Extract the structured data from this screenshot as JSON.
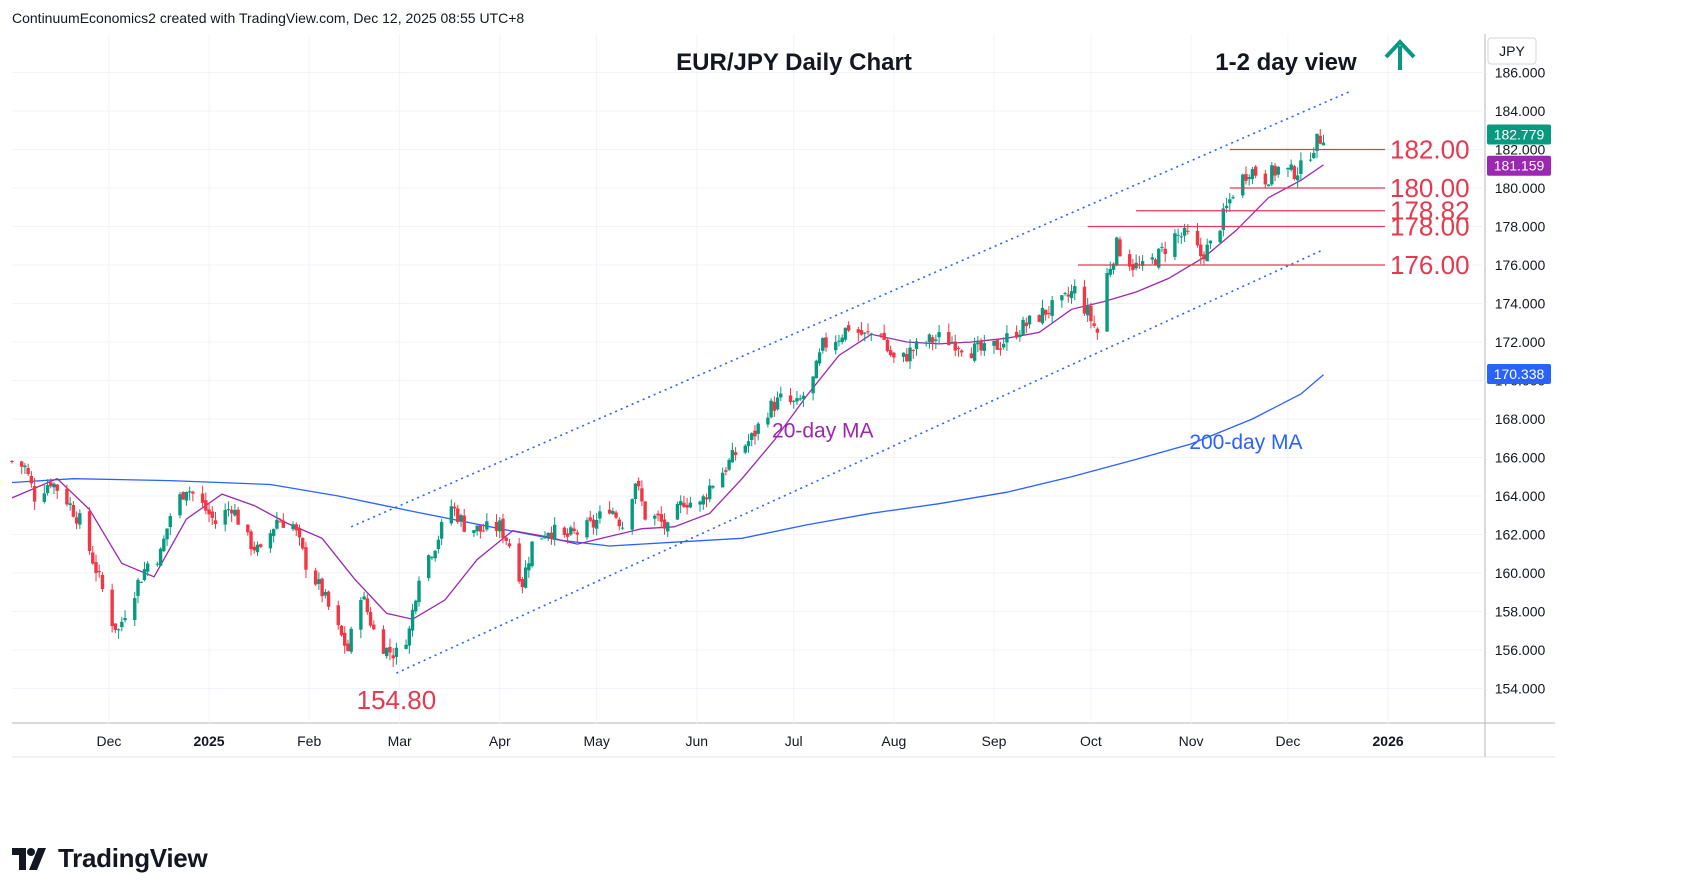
{
  "header": {
    "credit": "ContinuumEconomics2 created with TradingView.com, Dec 12, 2025 08:55 UTC+8"
  },
  "footer": {
    "logo_text": "TradingView",
    "logo_icon": "tradingview-logo-icon"
  },
  "chart_data": {
    "type": "candlestick",
    "title": "EUR/JPY Daily Chart",
    "annotation": "1-2 day view",
    "view_icon": "arrow-up-icon",
    "currency_label": "JPY",
    "ylim": [
      152,
      188
    ],
    "yticks": [
      "154.000",
      "156.000",
      "158.000",
      "160.000",
      "162.000",
      "164.000",
      "166.000",
      "168.000",
      "170.000",
      "172.000",
      "174.000",
      "176.000",
      "178.000",
      "180.000",
      "182.000",
      "184.000",
      "186.000"
    ],
    "xticks": [
      {
        "label": "Dec",
        "date": "2024-12-01"
      },
      {
        "label": "2025",
        "date": "2025-01-01",
        "bold": true
      },
      {
        "label": "Feb",
        "date": "2025-02-01"
      },
      {
        "label": "Mar",
        "date": "2025-03-01"
      },
      {
        "label": "Apr",
        "date": "2025-04-01"
      },
      {
        "label": "May",
        "date": "2025-05-01"
      },
      {
        "label": "Jun",
        "date": "2025-06-01"
      },
      {
        "label": "Jul",
        "date": "2025-07-01"
      },
      {
        "label": "Aug",
        "date": "2025-08-01"
      },
      {
        "label": "Sep",
        "date": "2025-09-01"
      },
      {
        "label": "Oct",
        "date": "2025-10-01"
      },
      {
        "label": "Nov",
        "date": "2025-11-01"
      },
      {
        "label": "Dec",
        "date": "2025-12-01"
      },
      {
        "label": "2026",
        "date": "2026-01-01",
        "bold": true
      }
    ],
    "price_tags": [
      {
        "value": 182.779,
        "label": "182.779",
        "color": "#089981"
      },
      {
        "value": 181.159,
        "label": "181.159",
        "color": "#9c27b0"
      },
      {
        "value": 170.338,
        "label": "170.338",
        "color": "#2962ff"
      }
    ],
    "levels": [
      {
        "value": 182.0,
        "label": "182.00",
        "from": "2025-11-13"
      },
      {
        "value": 180.0,
        "label": "180.00",
        "from": "2025-11-13"
      },
      {
        "value": 178.82,
        "label": "178.82",
        "from": "2025-10-15"
      },
      {
        "value": 178.0,
        "label": "178.00",
        "from": "2025-09-30"
      },
      {
        "value": 176.0,
        "label": "176.00",
        "from": "2025-09-27"
      }
    ],
    "low_label": {
      "value": 154.8,
      "label": "154.80",
      "date": "2025-02-28"
    },
    "channel": {
      "upper": [
        {
          "date": "2025-02-14",
          "value": 162.4
        },
        {
          "date": "2025-12-20",
          "value": 185.0
        }
      ],
      "lower": [
        {
          "date": "2025-02-28",
          "value": 154.8
        },
        {
          "date": "2025-12-12",
          "value": 176.8
        }
      ]
    },
    "ma_labels": [
      {
        "name": "20-day MA",
        "color": "#9c27b0",
        "date": "2025-07-10",
        "value": 167.4
      },
      {
        "name": "200-day MA",
        "color": "#2962ff",
        "date": "2025-11-18",
        "value": 166.8
      }
    ],
    "ma20": [
      [
        "2024-11-01",
        163.9
      ],
      [
        "2024-11-15",
        164.9
      ],
      [
        "2024-11-25",
        163.3
      ],
      [
        "2024-12-05",
        160.5
      ],
      [
        "2024-12-15",
        159.8
      ],
      [
        "2024-12-25",
        162.8
      ],
      [
        "2025-01-05",
        164.1
      ],
      [
        "2025-01-15",
        163.5
      ],
      [
        "2025-01-25",
        162.6
      ],
      [
        "2025-02-05",
        161.8
      ],
      [
        "2025-02-15",
        159.7
      ],
      [
        "2025-02-25",
        157.9
      ],
      [
        "2025-03-05",
        157.6
      ],
      [
        "2025-03-15",
        158.6
      ],
      [
        "2025-03-25",
        160.7
      ],
      [
        "2025-04-05",
        162.2
      ],
      [
        "2025-04-15",
        161.9
      ],
      [
        "2025-04-25",
        161.5
      ],
      [
        "2025-05-05",
        161.9
      ],
      [
        "2025-05-15",
        162.3
      ],
      [
        "2025-05-25",
        162.4
      ],
      [
        "2025-06-05",
        163.1
      ],
      [
        "2025-06-15",
        164.9
      ],
      [
        "2025-06-25",
        166.9
      ],
      [
        "2025-07-05",
        169.2
      ],
      [
        "2025-07-15",
        171.3
      ],
      [
        "2025-07-25",
        172.4
      ],
      [
        "2025-08-05",
        172.0
      ],
      [
        "2025-08-15",
        171.9
      ],
      [
        "2025-08-25",
        172.0
      ],
      [
        "2025-09-05",
        172.2
      ],
      [
        "2025-09-15",
        172.5
      ],
      [
        "2025-09-25",
        173.7
      ],
      [
        "2025-10-05",
        174.1
      ],
      [
        "2025-10-15",
        174.6
      ],
      [
        "2025-10-25",
        175.3
      ],
      [
        "2025-11-05",
        176.4
      ],
      [
        "2025-11-15",
        177.8
      ],
      [
        "2025-11-25",
        179.5
      ],
      [
        "2025-12-05",
        180.4
      ],
      [
        "2025-12-12",
        181.2
      ]
    ],
    "ma200": [
      [
        "2024-11-01",
        164.7
      ],
      [
        "2024-11-20",
        164.9
      ],
      [
        "2024-12-20",
        164.8
      ],
      [
        "2025-01-20",
        164.6
      ],
      [
        "2025-02-10",
        164.0
      ],
      [
        "2025-03-05",
        163.2
      ],
      [
        "2025-04-01",
        162.3
      ],
      [
        "2025-04-20",
        161.7
      ],
      [
        "2025-05-05",
        161.4
      ],
      [
        "2025-05-25",
        161.6
      ],
      [
        "2025-06-15",
        161.8
      ],
      [
        "2025-07-05",
        162.5
      ],
      [
        "2025-07-25",
        163.1
      ],
      [
        "2025-08-15",
        163.6
      ],
      [
        "2025-09-05",
        164.2
      ],
      [
        "2025-09-25",
        165.0
      ],
      [
        "2025-10-15",
        165.9
      ],
      [
        "2025-11-01",
        166.7
      ],
      [
        "2025-11-20",
        168.0
      ],
      [
        "2025-12-05",
        169.3
      ],
      [
        "2025-12-12",
        170.3
      ]
    ],
    "close_anchors": [
      [
        "2024-11-01",
        165.8
      ],
      [
        "2024-11-05",
        165.5
      ],
      [
        "2024-11-08",
        164.0
      ],
      [
        "2024-11-13",
        164.8
      ],
      [
        "2024-11-18",
        163.8
      ],
      [
        "2024-11-22",
        162.7
      ],
      [
        "2024-11-27",
        160.2
      ],
      [
        "2024-12-02",
        157.5
      ],
      [
        "2024-12-04",
        157.0
      ],
      [
        "2024-12-06",
        158.0
      ],
      [
        "2024-12-10",
        159.5
      ],
      [
        "2024-12-13",
        160.5
      ],
      [
        "2024-12-17",
        161.0
      ],
      [
        "2024-12-20",
        163.0
      ],
      [
        "2024-12-25",
        164.5
      ],
      [
        "2024-12-30",
        163.5
      ],
      [
        "2025-01-03",
        162.6
      ],
      [
        "2025-01-08",
        163.5
      ],
      [
        "2025-01-13",
        161.7
      ],
      [
        "2025-01-17",
        161.0
      ],
      [
        "2025-01-22",
        162.8
      ],
      [
        "2025-01-27",
        162.5
      ],
      [
        "2025-01-31",
        160.5
      ],
      [
        "2025-02-05",
        159.0
      ],
      [
        "2025-02-10",
        157.0
      ],
      [
        "2025-02-13",
        156.0
      ],
      [
        "2025-02-17",
        159.0
      ],
      [
        "2025-02-21",
        157.0
      ],
      [
        "2025-02-25",
        156.0
      ],
      [
        "2025-02-28",
        155.8
      ],
      [
        "2025-03-04",
        157.0
      ],
      [
        "2025-03-07",
        160.0
      ],
      [
        "2025-03-12",
        161.5
      ],
      [
        "2025-03-17",
        163.5
      ],
      [
        "2025-03-21",
        162.5
      ],
      [
        "2025-03-26",
        162.2
      ],
      [
        "2025-04-01",
        162.4
      ],
      [
        "2025-04-04",
        161.5
      ],
      [
        "2025-04-08",
        159.5
      ],
      [
        "2025-04-11",
        161.5
      ],
      [
        "2025-04-16",
        162.3
      ],
      [
        "2025-04-21",
        161.8
      ],
      [
        "2025-04-25",
        162.1
      ],
      [
        "2025-04-30",
        162.5
      ],
      [
        "2025-05-05",
        163.5
      ],
      [
        "2025-05-09",
        162.5
      ],
      [
        "2025-05-13",
        164.8
      ],
      [
        "2025-05-16",
        163.0
      ],
      [
        "2025-05-20",
        162.8
      ],
      [
        "2025-05-23",
        162.2
      ],
      [
        "2025-05-28",
        163.8
      ],
      [
        "2025-06-02",
        163.5
      ],
      [
        "2025-06-05",
        164.5
      ],
      [
        "2025-06-10",
        165.5
      ],
      [
        "2025-06-13",
        166.2
      ],
      [
        "2025-06-18",
        167.0
      ],
      [
        "2025-06-23",
        168.5
      ],
      [
        "2025-06-27",
        169.0
      ],
      [
        "2025-07-02",
        168.7
      ],
      [
        "2025-07-07",
        170.0
      ],
      [
        "2025-07-10",
        171.8
      ],
      [
        "2025-07-15",
        172.3
      ],
      [
        "2025-07-18",
        172.8
      ],
      [
        "2025-07-23",
        172.3
      ],
      [
        "2025-07-28",
        172.6
      ],
      [
        "2025-07-30",
        171.6
      ],
      [
        "2025-08-02",
        170.8
      ],
      [
        "2025-08-06",
        171.5
      ],
      [
        "2025-08-11",
        172.0
      ],
      [
        "2025-08-15",
        172.2
      ],
      [
        "2025-08-20",
        172.0
      ],
      [
        "2025-08-25",
        171.6
      ],
      [
        "2025-08-29",
        171.5
      ],
      [
        "2025-09-03",
        171.9
      ],
      [
        "2025-09-08",
        172.6
      ],
      [
        "2025-09-12",
        173.0
      ],
      [
        "2025-09-17",
        173.6
      ],
      [
        "2025-09-22",
        174.0
      ],
      [
        "2025-09-26",
        174.7
      ],
      [
        "2025-09-30",
        173.5
      ],
      [
        "2025-10-03",
        172.5
      ],
      [
        "2025-10-06",
        175.5
      ],
      [
        "2025-10-09",
        177.0
      ],
      [
        "2025-10-14",
        176.0
      ],
      [
        "2025-10-17",
        175.8
      ],
      [
        "2025-10-22",
        176.5
      ],
      [
        "2025-10-27",
        177.5
      ],
      [
        "2025-10-31",
        177.5
      ],
      [
        "2025-11-04",
        176.5
      ],
      [
        "2025-11-07",
        177.0
      ],
      [
        "2025-11-11",
        178.5
      ],
      [
        "2025-11-14",
        179.8
      ],
      [
        "2025-11-19",
        181.0
      ],
      [
        "2025-11-24",
        180.5
      ],
      [
        "2025-11-28",
        181.0
      ],
      [
        "2025-12-02",
        180.8
      ],
      [
        "2025-12-05",
        181.0
      ],
      [
        "2025-12-09",
        182.2
      ],
      [
        "2025-12-12",
        182.78
      ]
    ]
  }
}
